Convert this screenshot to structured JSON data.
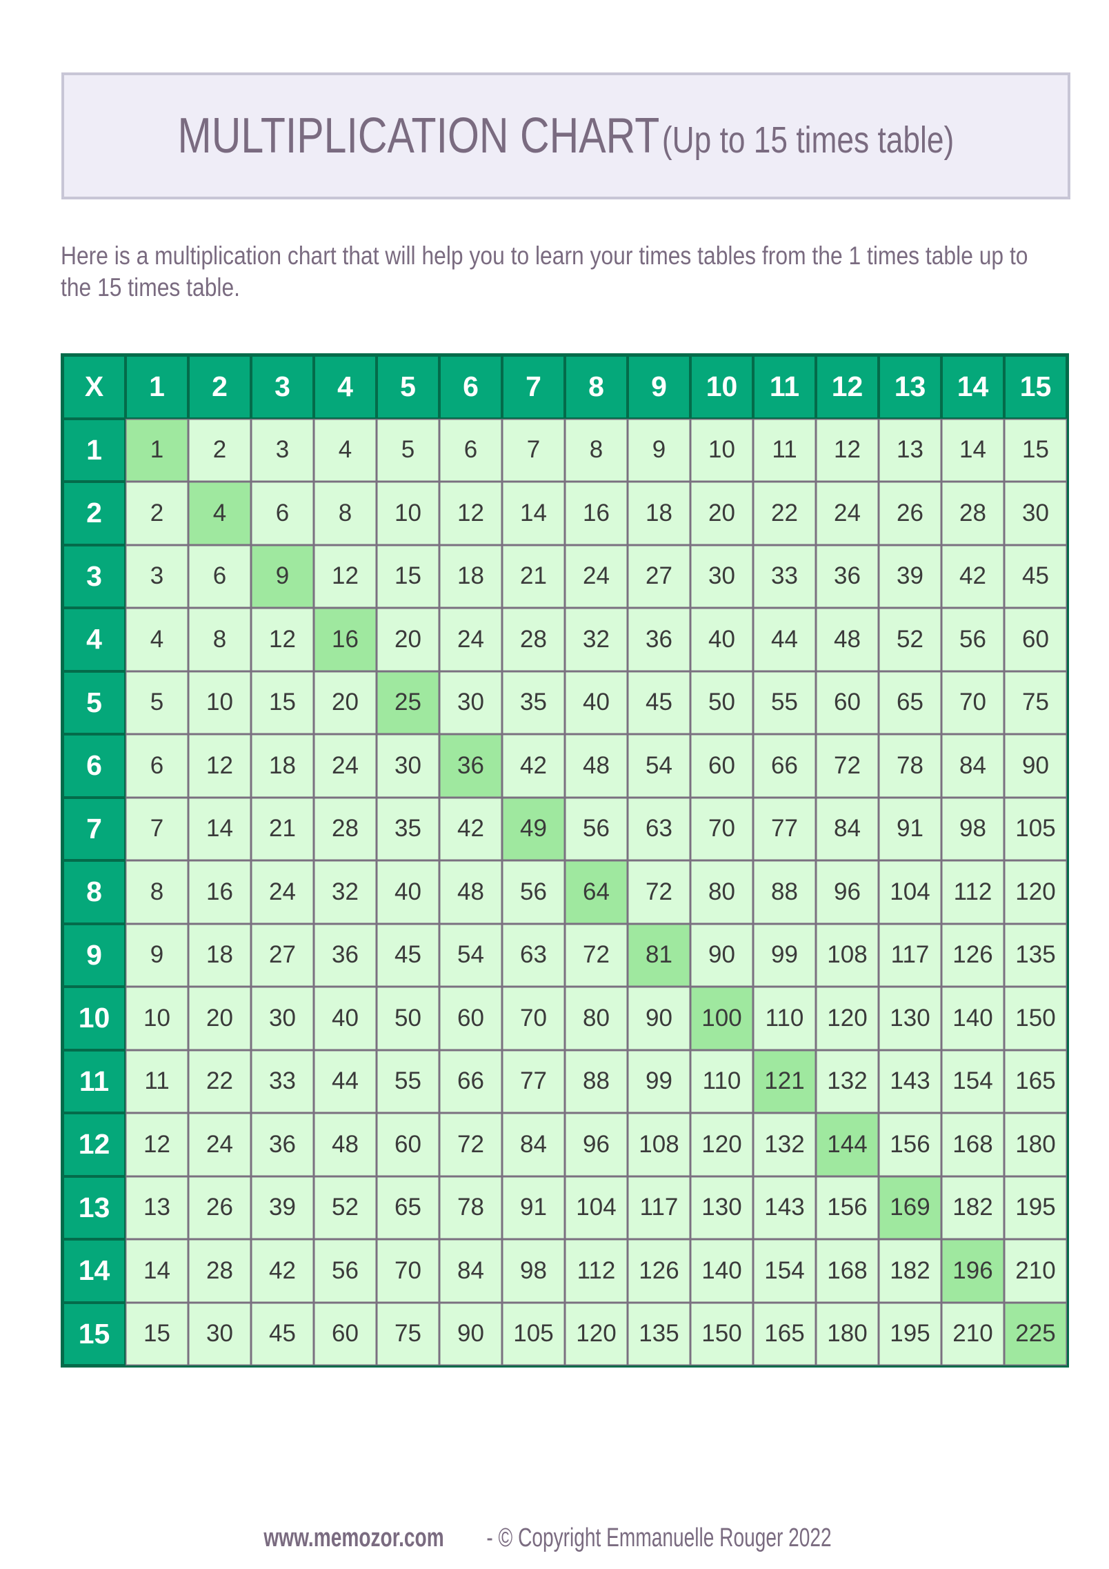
{
  "title": {
    "main": "MULTIPLICATION CHART",
    "sub": "(Up to 15 times table)"
  },
  "intro": "Here is a multiplication chart that will help you to learn your times tables from the 1 times table up to the 15 times table.",
  "table": {
    "corner": "X",
    "column_headers": [
      "1",
      "2",
      "3",
      "4",
      "5",
      "6",
      "7",
      "8",
      "9",
      "10",
      "11",
      "12",
      "13",
      "14",
      "15"
    ],
    "row_headers": [
      "1",
      "2",
      "3",
      "4",
      "5",
      "6",
      "7",
      "8",
      "9",
      "10",
      "11",
      "12",
      "13",
      "14",
      "15"
    ],
    "rows": [
      [
        "1",
        "2",
        "3",
        "4",
        "5",
        "6",
        "7",
        "8",
        "9",
        "10",
        "11",
        "12",
        "13",
        "14",
        "15"
      ],
      [
        "2",
        "4",
        "6",
        "8",
        "10",
        "12",
        "14",
        "16",
        "18",
        "20",
        "22",
        "24",
        "26",
        "28",
        "30"
      ],
      [
        "3",
        "6",
        "9",
        "12",
        "15",
        "18",
        "21",
        "24",
        "27",
        "30",
        "33",
        "36",
        "39",
        "42",
        "45"
      ],
      [
        "4",
        "8",
        "12",
        "16",
        "20",
        "24",
        "28",
        "32",
        "36",
        "40",
        "44",
        "48",
        "52",
        "56",
        "60"
      ],
      [
        "5",
        "10",
        "15",
        "20",
        "25",
        "30",
        "35",
        "40",
        "45",
        "50",
        "55",
        "60",
        "65",
        "70",
        "75"
      ],
      [
        "6",
        "12",
        "18",
        "24",
        "30",
        "36",
        "42",
        "48",
        "54",
        "60",
        "66",
        "72",
        "78",
        "84",
        "90"
      ],
      [
        "7",
        "14",
        "21",
        "28",
        "35",
        "42",
        "49",
        "56",
        "63",
        "70",
        "77",
        "84",
        "91",
        "98",
        "105"
      ],
      [
        "8",
        "16",
        "24",
        "32",
        "40",
        "48",
        "56",
        "64",
        "72",
        "80",
        "88",
        "96",
        "104",
        "112",
        "120"
      ],
      [
        "9",
        "18",
        "27",
        "36",
        "45",
        "54",
        "63",
        "72",
        "81",
        "90",
        "99",
        "108",
        "117",
        "126",
        "135"
      ],
      [
        "10",
        "20",
        "30",
        "40",
        "50",
        "60",
        "70",
        "80",
        "90",
        "100",
        "110",
        "120",
        "130",
        "140",
        "150"
      ],
      [
        "11",
        "22",
        "33",
        "44",
        "55",
        "66",
        "77",
        "88",
        "99",
        "110",
        "121",
        "132",
        "143",
        "154",
        "165"
      ],
      [
        "12",
        "24",
        "36",
        "48",
        "60",
        "72",
        "84",
        "96",
        "108",
        "120",
        "132",
        "144",
        "156",
        "168",
        "180"
      ],
      [
        "13",
        "26",
        "39",
        "52",
        "65",
        "78",
        "91",
        "104",
        "117",
        "130",
        "143",
        "156",
        "169",
        "182",
        "195"
      ],
      [
        "14",
        "28",
        "42",
        "56",
        "70",
        "84",
        "98",
        "112",
        "126",
        "140",
        "154",
        "168",
        "182",
        "196",
        "210"
      ],
      [
        "15",
        "30",
        "45",
        "60",
        "75",
        "90",
        "105",
        "120",
        "135",
        "150",
        "165",
        "180",
        "195",
        "210",
        "225"
      ]
    ],
    "colors": {
      "header": "#05a87a",
      "cell": "#d9fbd9",
      "diagonal": "#9fe89f",
      "border": "#046b4a"
    }
  },
  "footer": {
    "site": "www.memozor.com",
    "copyright": " - © Copyright Emmanuelle Rouger 2022"
  }
}
